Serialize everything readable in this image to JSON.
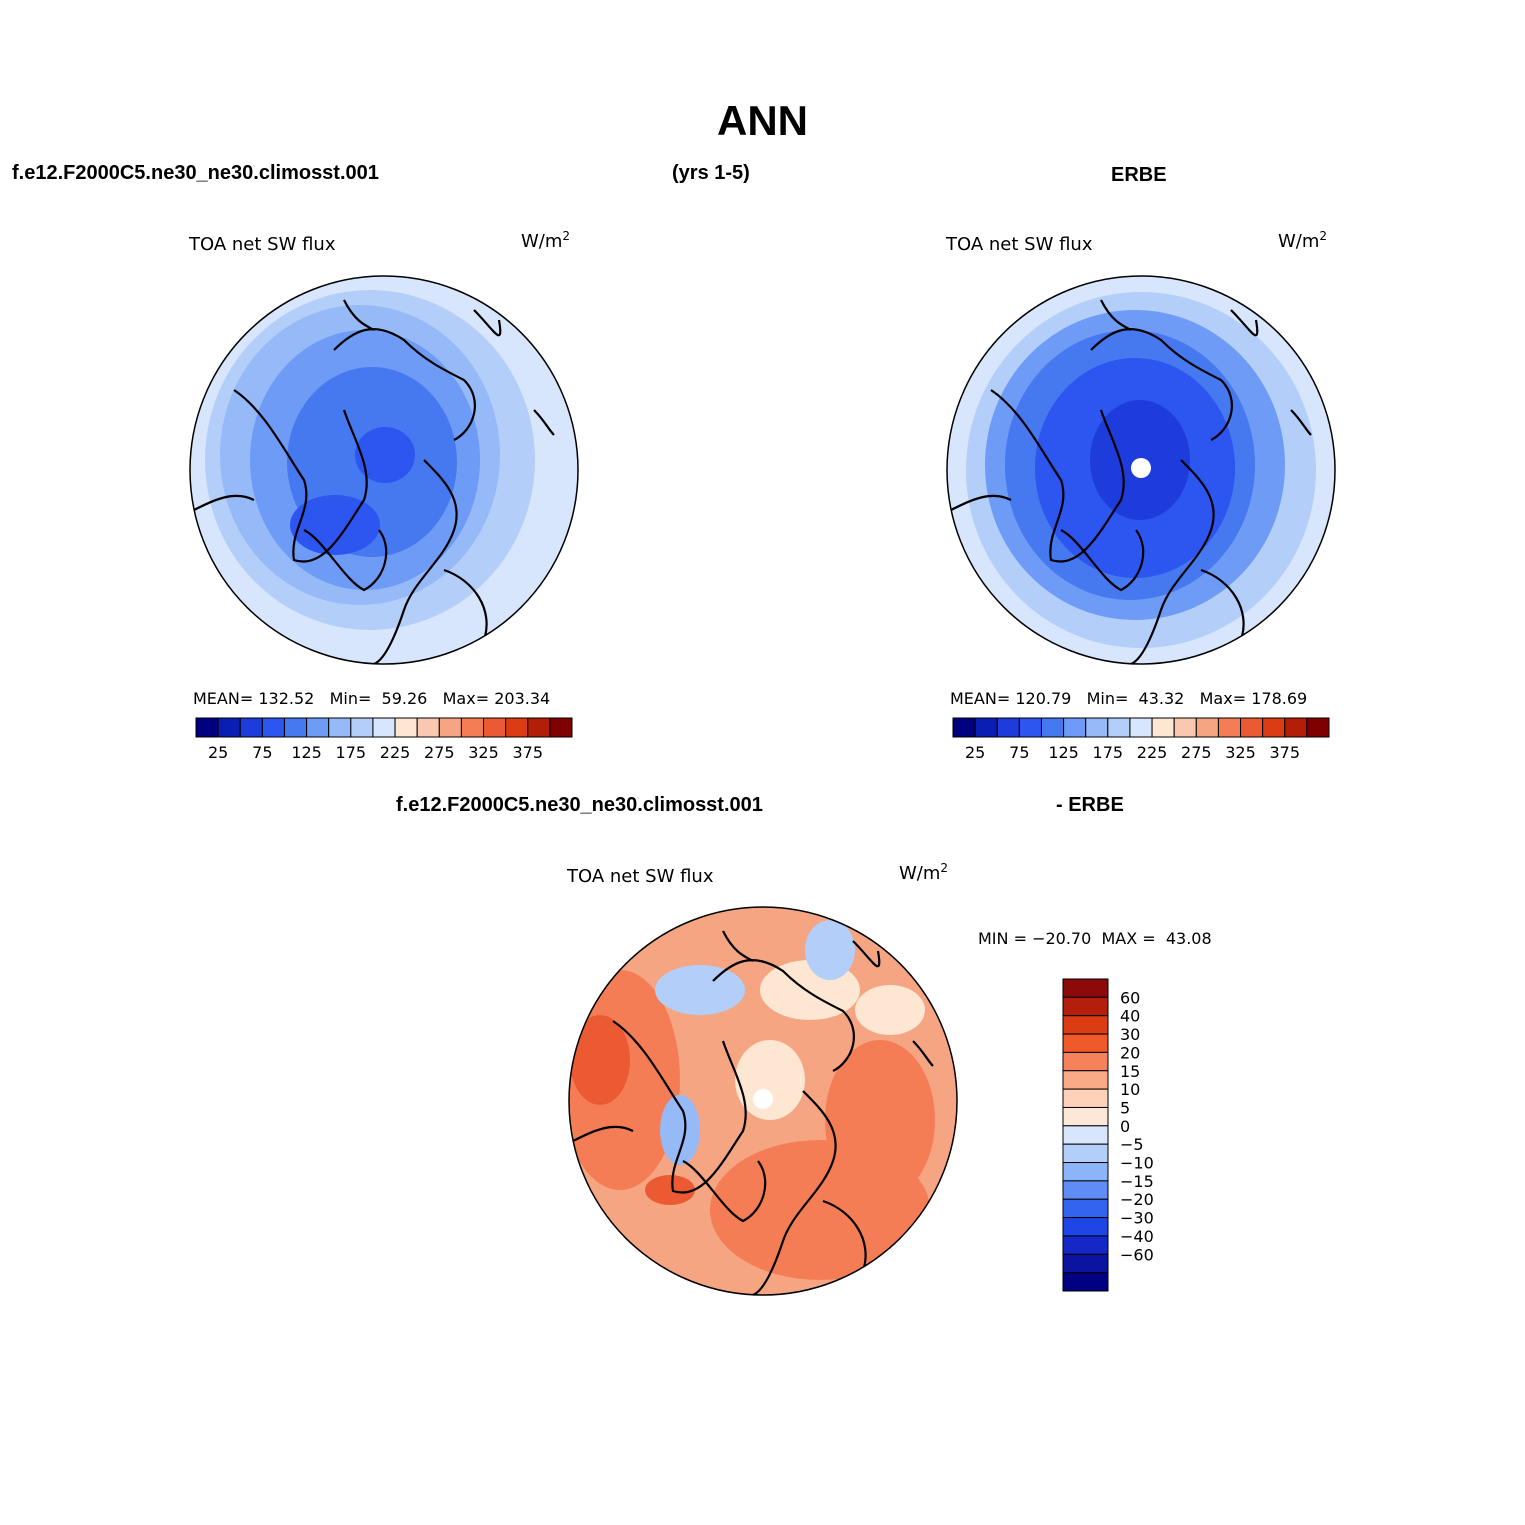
{
  "title": "ANN",
  "headers": {
    "case_name": "f.e12.F2000C5.ne30_ne30.climosst.001",
    "years": "(yrs 1-5)",
    "obs_name": "ERBE",
    "diff_case_name": "f.e12.F2000C5.ne30_ne30.climosst.001",
    "diff_obs_name": "- ERBE"
  },
  "panels": [
    {
      "id": "model",
      "variable": "TOA net SW flux",
      "units_base": "W/m",
      "units_exp": "2",
      "stats": {
        "mean_label": "MEAN=",
        "mean": "132.52",
        "min_label": "Min=",
        "min": "59.26",
        "max_label": "Max=",
        "max": "203.34"
      }
    },
    {
      "id": "obs",
      "variable": "TOA net SW flux",
      "units_base": "W/m",
      "units_exp": "2",
      "stats": {
        "mean_label": "MEAN=",
        "mean": "120.79",
        "min_label": "Min=",
        "min": "43.32",
        "max_label": "Max=",
        "max": "178.69"
      }
    },
    {
      "id": "diff",
      "variable": "TOA net SW flux",
      "units_base": "W/m",
      "units_exp": "2",
      "stats": {
        "min_label": "MIN =",
        "min": "−20.70",
        "max_label": "MAX =",
        "max": "43.08"
      }
    }
  ],
  "colorbar_main": {
    "colors": [
      "#00007f",
      "#0a1eb4",
      "#1e3cdc",
      "#2d55f0",
      "#4678f0",
      "#6e9bf5",
      "#96b9f8",
      "#b4cefa",
      "#d7e6fc",
      "#fde6d2",
      "#fac8b0",
      "#f5a582",
      "#f57d55",
      "#eb5a32",
      "#dc3c14",
      "#b41e08",
      "#7f0000"
    ],
    "labels": [
      "25",
      "75",
      "125",
      "175",
      "225",
      "275",
      "325",
      "375"
    ]
  },
  "colorbar_diff": {
    "colors_top_to_bottom": [
      "#8c0a0a",
      "#b41e0a",
      "#dc3c14",
      "#f05a28",
      "#f5825a",
      "#faaa87",
      "#fdd2b9",
      "#fde8d8",
      "#d7e6fc",
      "#b4cefa",
      "#8cb4f8",
      "#5f8cf5",
      "#3264f0",
      "#1e46e6",
      "#1428c8",
      "#0a14a0",
      "#000082"
    ],
    "labels": [
      "60",
      "40",
      "30",
      "20",
      "15",
      "10",
      "5",
      "0",
      "−5",
      "−10",
      "−15",
      "−20",
      "−30",
      "−40",
      "−60"
    ]
  },
  "map_colors": {
    "model": {
      "outer": "#d7e6fc",
      "ring2": "#b4cefa",
      "ring3": "#96b9f8",
      "ring4": "#6e9bf5",
      "ring5": "#4678f0",
      "core": "#2d55f0"
    },
    "obs": {
      "outer": "#d7e6fc",
      "ring2": "#b4cefa",
      "ring3": "#6e9bf5",
      "ring4": "#4678f0",
      "ring5": "#2d55f0",
      "core": "#1e3cdc"
    },
    "diff": {
      "base": "#f5a582",
      "warm": "#f57d55",
      "hot": "#eb5a32",
      "pale": "#fde6d2",
      "cool": "#b4cefa",
      "cooler": "#96b9f8"
    }
  }
}
